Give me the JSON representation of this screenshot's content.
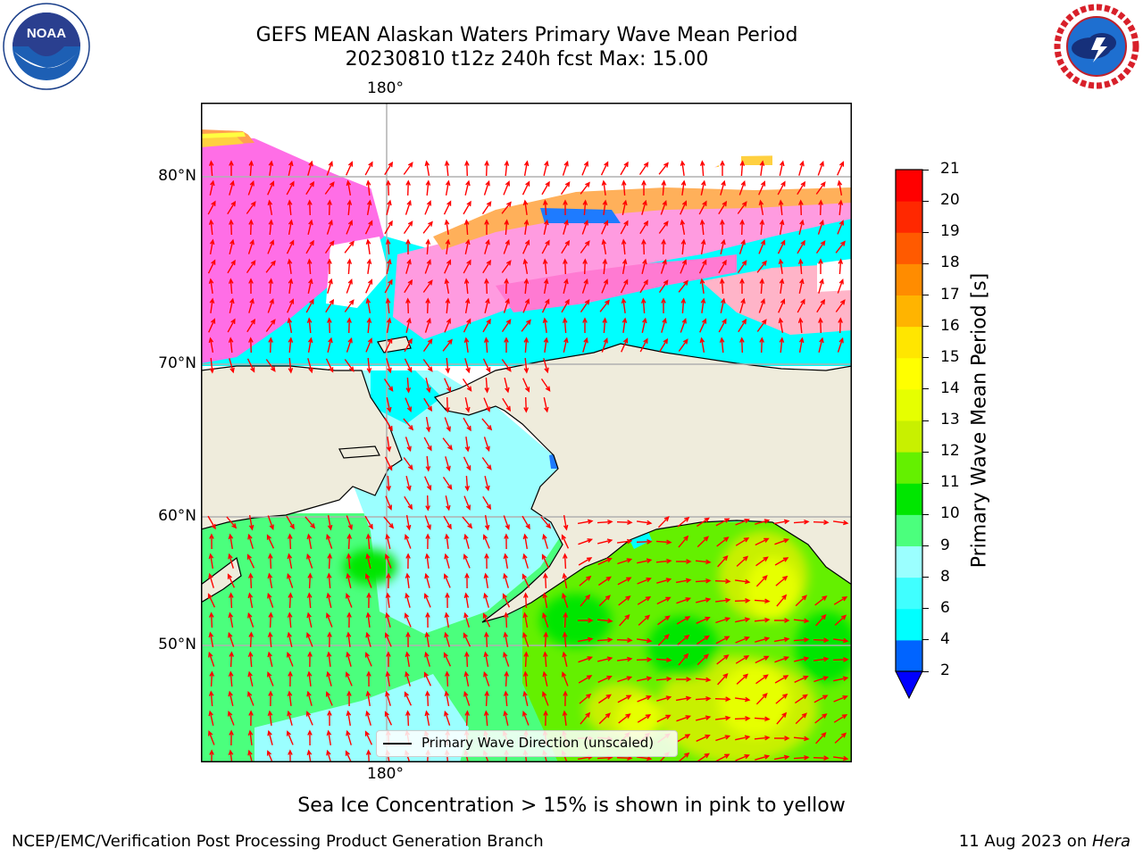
{
  "title": {
    "line1": "GEFS MEAN Alaskan Waters Primary Wave Mean Period",
    "line2": "20230810 t12z 240h fcst   Max: 15.00"
  },
  "logos": {
    "noaa": {
      "text": "NOAA",
      "ring_text": "NATIONAL OCEANIC AND ATMOSPHERIC ADMINISTRATION · U.S. DEPARTMENT OF COMMERCE",
      "icon": "noaa-logo"
    },
    "nws": {
      "ring_text": "NATIONAL WEATHER SERVICE",
      "icon": "nws-logo"
    }
  },
  "map": {
    "lon_label_top": "180°",
    "lon_label_bottom": "180°",
    "lat_labels": [
      "80°N",
      "70°N",
      "60°N",
      "50°N"
    ],
    "legend": "Primary Wave Direction (unscaled)",
    "colors": {
      "land": "#efecdc",
      "arrow": "#ff0000",
      "grid": "#b0b0b0"
    }
  },
  "colorbar": {
    "title": "Primary Wave Mean Period [s]",
    "ticks": [
      "21",
      "20",
      "19",
      "18",
      "17",
      "16",
      "15",
      "14",
      "13",
      "12",
      "11",
      "10",
      "9",
      "8",
      "6",
      "4",
      "2"
    ],
    "levels": [
      2,
      4,
      6,
      8,
      9,
      10,
      11,
      12,
      13,
      14,
      15,
      16,
      17,
      18,
      19,
      20,
      21
    ],
    "colors": [
      "#0064ff",
      "#00ffff",
      "#40ffff",
      "#9bffff",
      "#4bff7d",
      "#00e600",
      "#64f000",
      "#c8f000",
      "#e6ff00",
      "#ffff00",
      "#ffe600",
      "#ffb400",
      "#ff8c00",
      "#ff5a00",
      "#ff2800",
      "#ff0000"
    ],
    "extend_color": "#0000ff"
  },
  "note": "Sea Ice Concentration > 15% is shown in pink to yellow",
  "footer": {
    "left": "NCEP/EMC/Verification Post Processing Product Generation Branch",
    "right_date": "11 Aug 2023 on ",
    "right_host": "Hera"
  }
}
